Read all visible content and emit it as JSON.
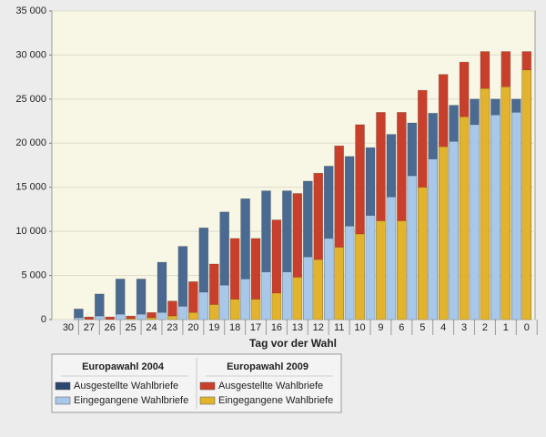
{
  "chart_data": {
    "type": "bar",
    "x_label": "Tag vor der Wahl",
    "categories": [
      "30",
      "27",
      "26",
      "25",
      "24",
      "23",
      "20",
      "19",
      "18",
      "17",
      "16",
      "13",
      "12",
      "11",
      "10",
      "9",
      "6",
      "5",
      "4",
      "3",
      "2",
      "1",
      "0"
    ],
    "ylim": [
      0,
      35000
    ],
    "yticks": [
      0,
      {
        "value": 5000,
        "label": "5 000"
      },
      {
        "value": 10000,
        "label": "10 000"
      },
      {
        "value": 15000,
        "label": "15 000"
      },
      {
        "value": 20000,
        "label": "20 000"
      },
      {
        "value": 25000,
        "label": "25 000"
      },
      {
        "value": 30000,
        "label": "30 000"
      },
      {
        "value": 35000,
        "label": "35 000"
      }
    ],
    "grid": true,
    "groups": [
      {
        "name": "Europawahl 2004",
        "series": [
          {
            "name": "Ausgestellte Wahlbriefe",
            "color": "#4a6a92",
            "values": [
              1200,
              2900,
              4600,
              4600,
              6500,
              8300,
              10400,
              12200,
              13700,
              14600,
              14600,
              15700,
              17400,
              18500,
              19500,
              21000,
              22300,
              23400,
              24300,
              25000,
              25000,
              25000,
              null
            ]
          },
          {
            "name": "Eingegangene Wahlbriefe",
            "color": "#a8c8ea",
            "values": [
              200,
              400,
              600,
              600,
              800,
              1500,
              3100,
              3900,
              4600,
              5400,
              5400,
              7100,
              9200,
              10600,
              11800,
              13900,
              16300,
              18200,
              20200,
              22100,
              23200,
              23500,
              null
            ]
          }
        ]
      },
      {
        "name": "Europawahl 2009",
        "series": [
          {
            "name": "Ausgestellte Wahlbriefe",
            "color": "#c8402b",
            "values": [
              null,
              300,
              300,
              400,
              800,
              2100,
              4300,
              6300,
              9200,
              9200,
              11300,
              14300,
              16600,
              19700,
              22100,
              23500,
              23500,
              26000,
              27800,
              29200,
              30400,
              30400,
              30400
            ]
          },
          {
            "name": "Eingegangene Wahlbriefe",
            "color": "#e2b42e",
            "values": [
              null,
              0,
              0,
              100,
              200,
              400,
              800,
              1700,
              2300,
              2300,
              3000,
              4800,
              6800,
              8200,
              9700,
              11200,
              11200,
              15000,
              19600,
              23000,
              26200,
              26400,
              28300
            ]
          }
        ]
      }
    ]
  }
}
